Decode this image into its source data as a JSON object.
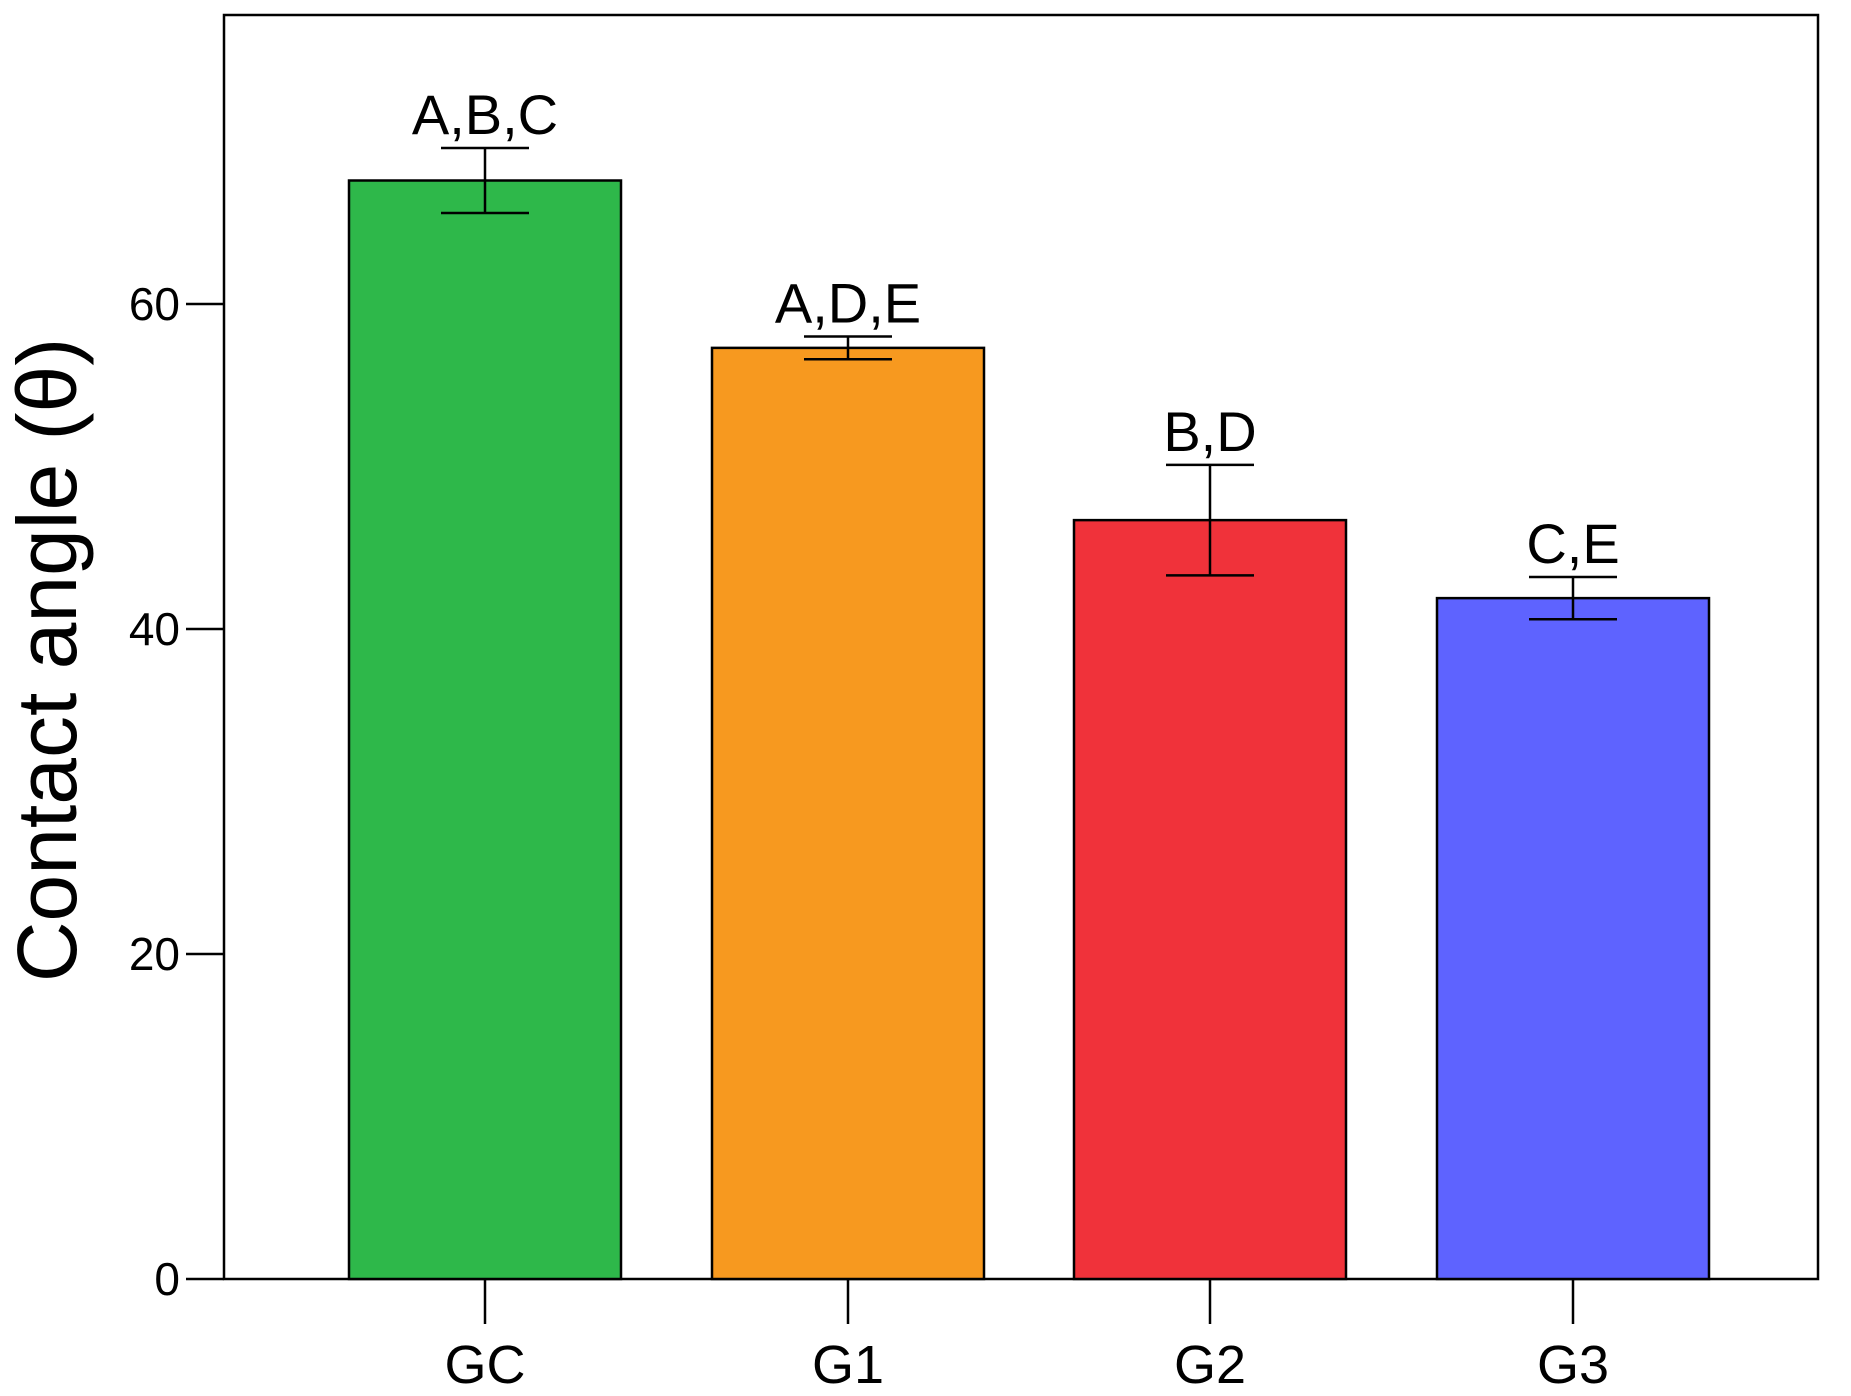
{
  "chart_data": {
    "type": "bar",
    "title": "",
    "xlabel": "",
    "ylabel": "Contact angle (θ)",
    "ylim": [
      0,
      78
    ],
    "yticks": [
      0,
      20,
      40,
      60
    ],
    "ytick_labels": [
      "0",
      "20",
      "40",
      "60"
    ],
    "grid": false,
    "legend": "none",
    "categories": [
      "GC",
      "G1",
      "G2",
      "G3"
    ],
    "values": [
      67.6,
      57.3,
      46.7,
      41.9
    ],
    "errors": [
      2.0,
      0.7,
      3.4,
      1.3
    ],
    "significance_labels": [
      "A,B,C",
      "A,D,E",
      "B,D",
      "C,E"
    ],
    "colors": [
      "#2eb84a",
      "#f7991f",
      "#f0323a",
      "#5e63ff"
    ]
  }
}
